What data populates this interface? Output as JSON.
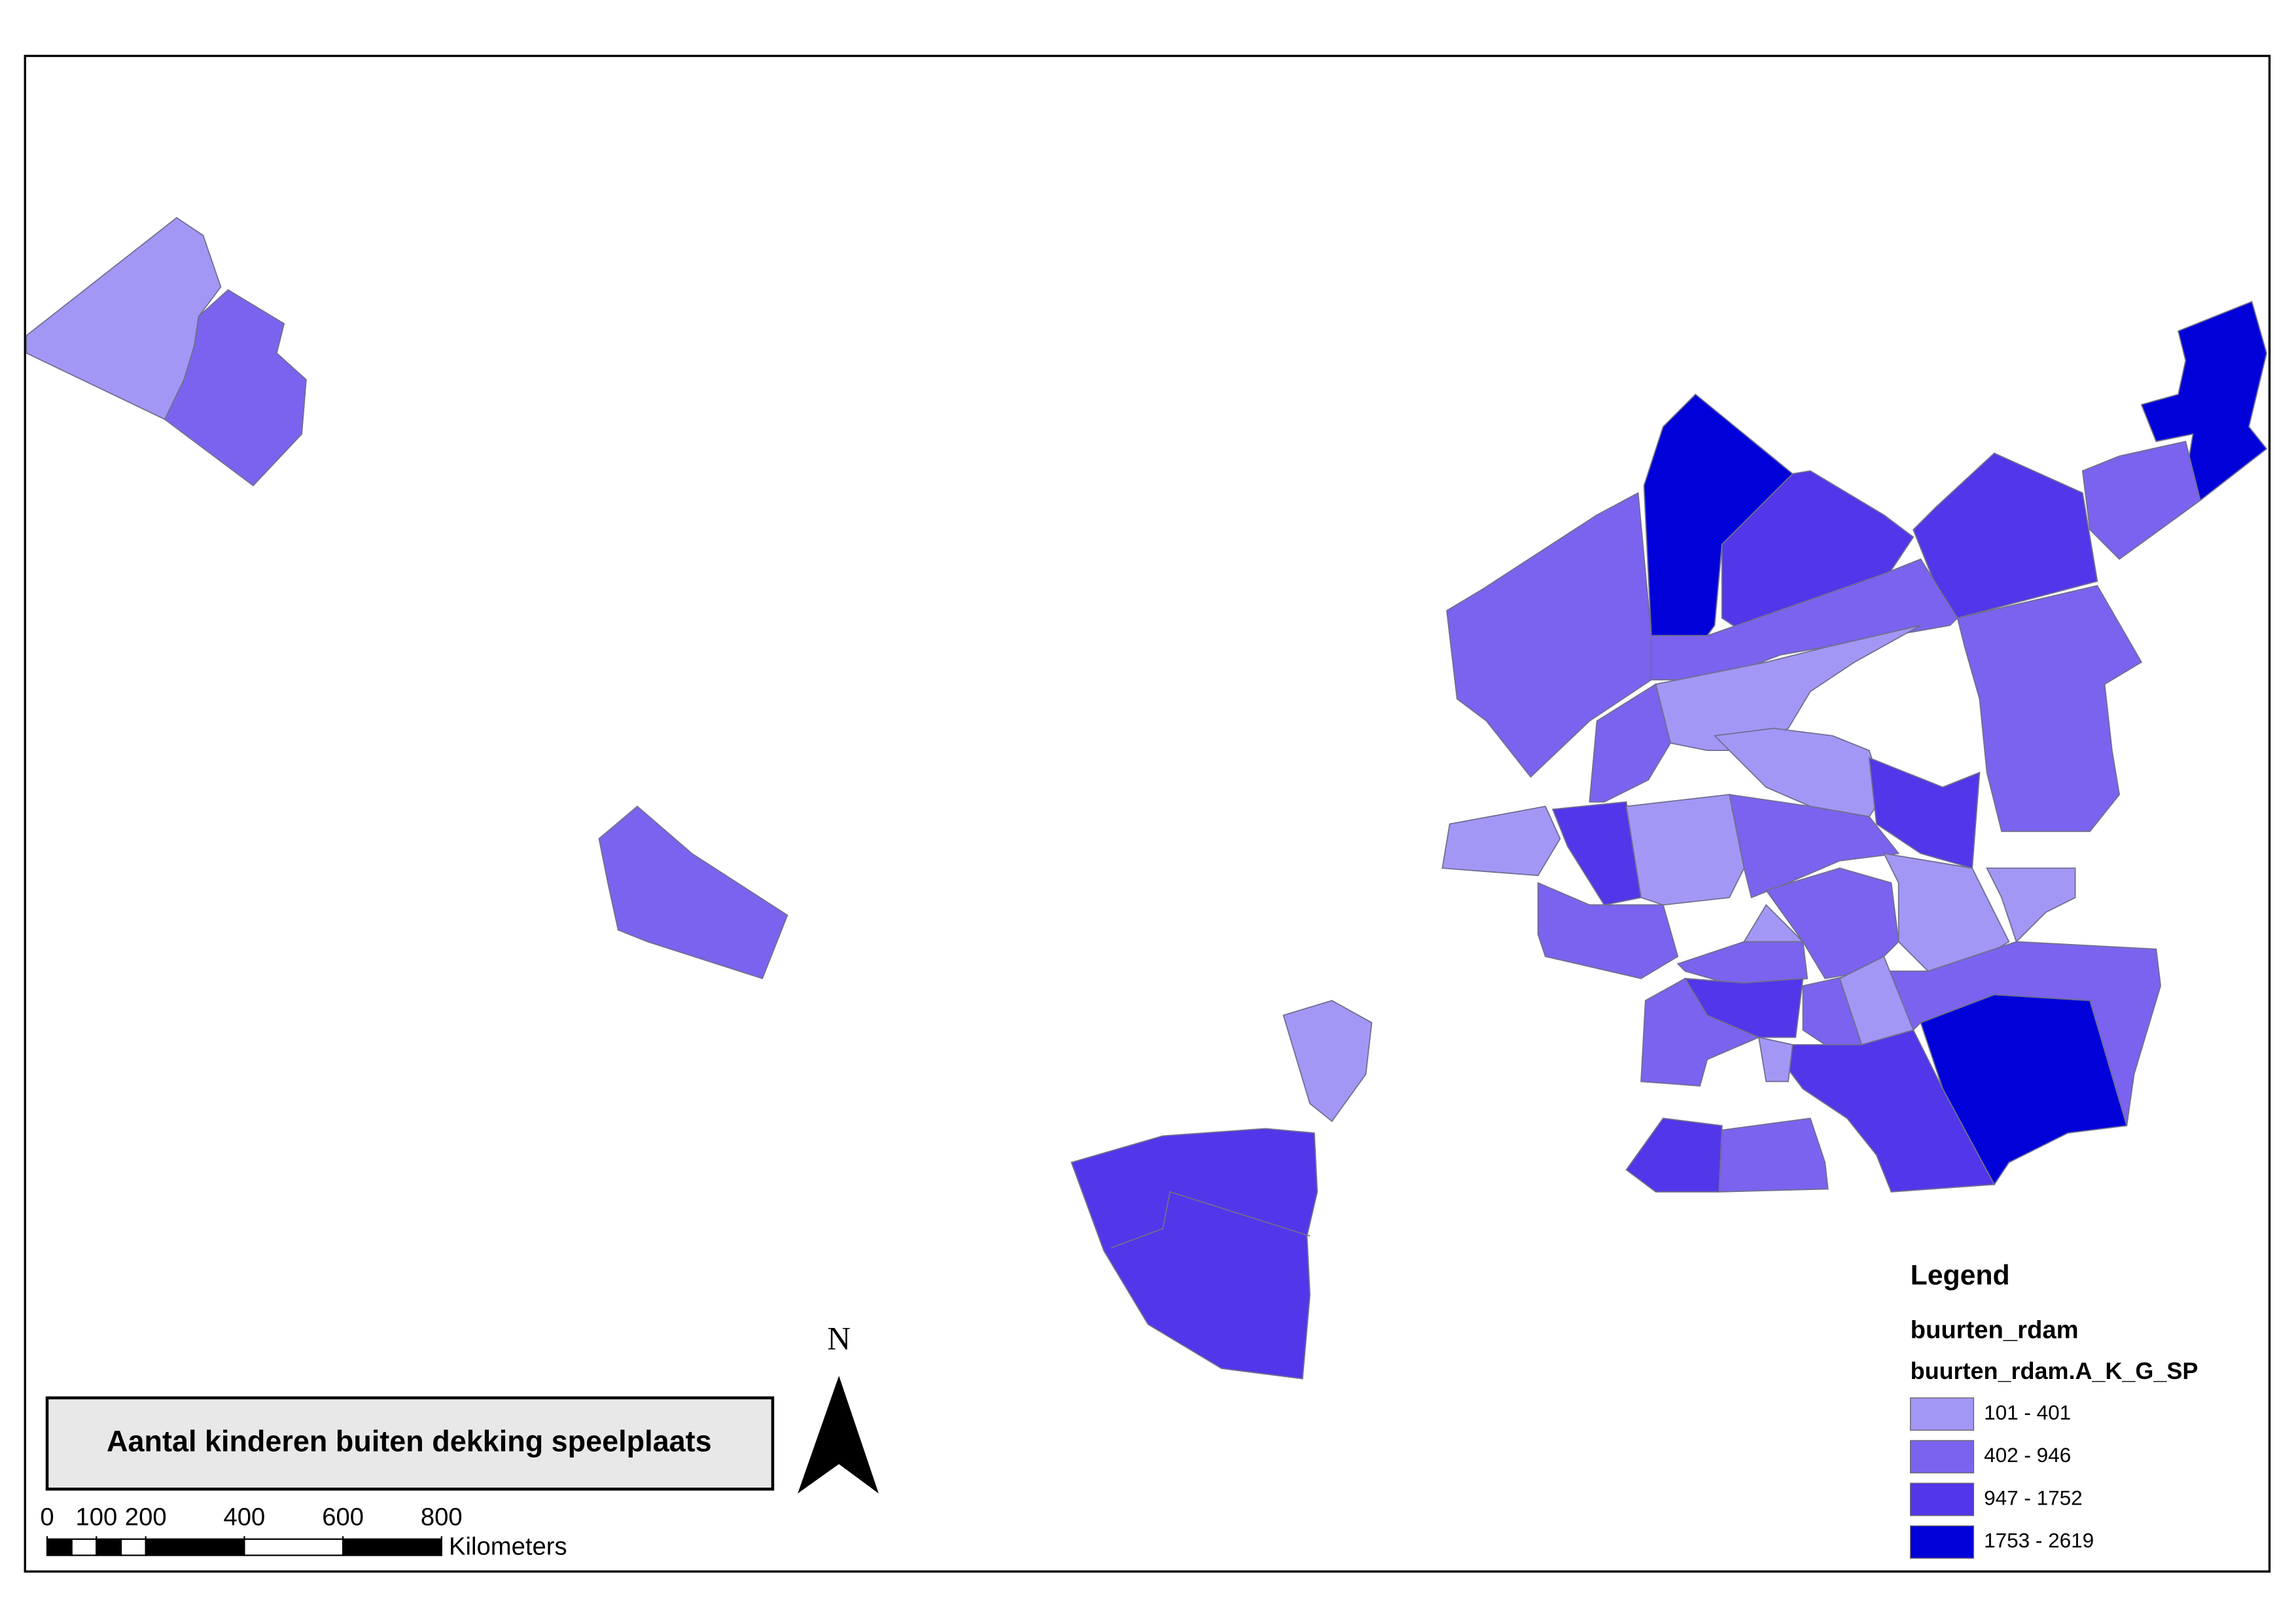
{
  "title": "Aantal kinderen buiten dekking speelplaats",
  "north_label": "N",
  "legend": {
    "title": "Legend",
    "layer": "buurten_rdam",
    "field": "buurten_rdam.A_K_G_SP",
    "classes": [
      {
        "label": "101 - 401",
        "color": "#a397f6"
      },
      {
        "label": "402 - 946",
        "color": "#7b63ef"
      },
      {
        "label": "947 - 1752",
        "color": "#5236e9"
      },
      {
        "label": "1753 - 2619",
        "color": "#0000d9"
      }
    ]
  },
  "scale_bar": {
    "ticks": [
      0,
      100,
      200,
      400,
      600,
      800
    ],
    "unit": "Kilometers"
  }
}
